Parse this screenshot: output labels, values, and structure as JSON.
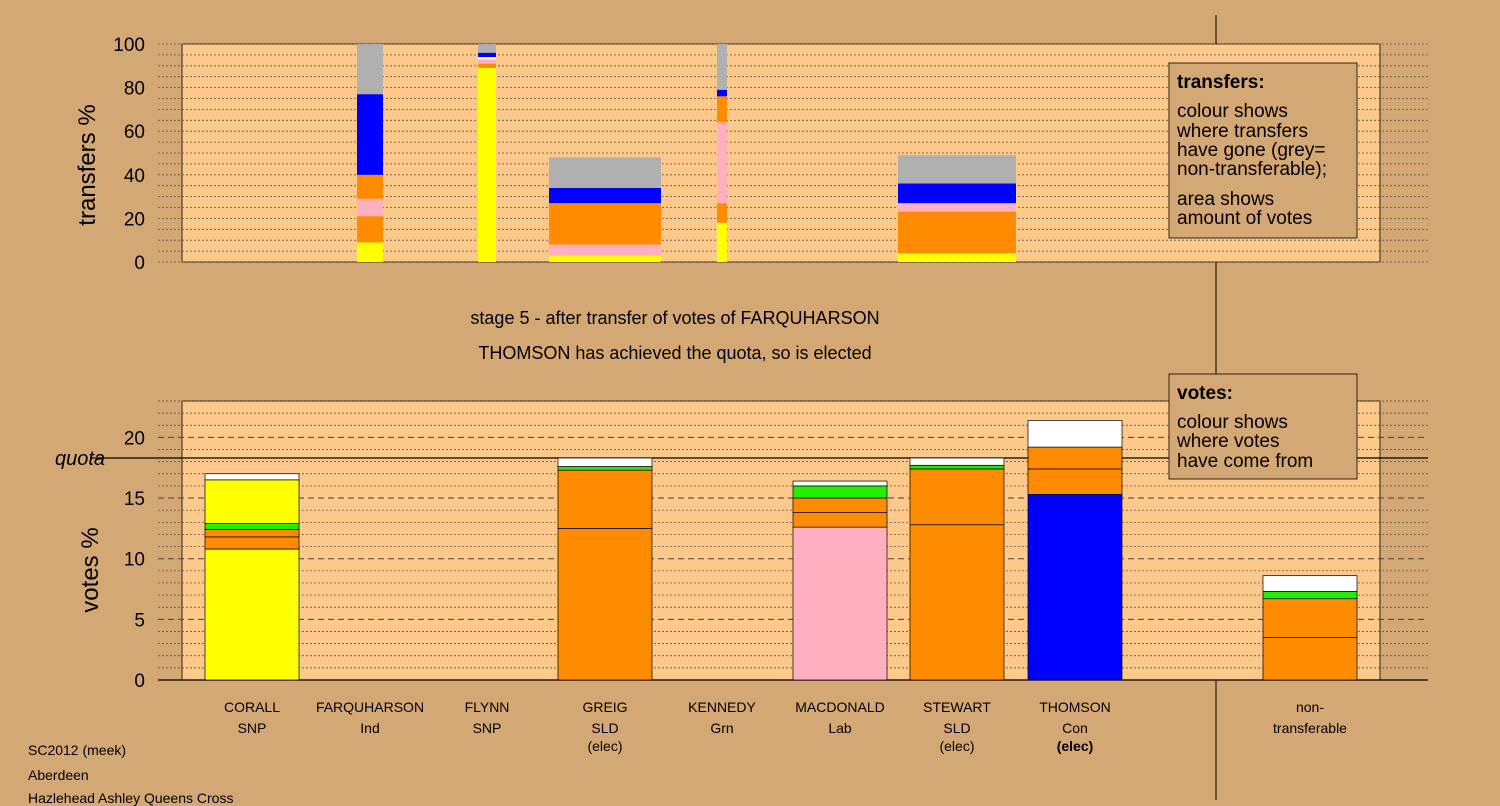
{
  "footer": {
    "line1": "SC2012 (meek)",
    "line2": "Aberdeen",
    "line3": "Hazlehead Ashley Queens Cross"
  },
  "colors": {
    "background": "#d4a874",
    "plot_area": "#fdc98a",
    "yellow": "#ffff00",
    "orange": "#ff8c00",
    "pink": "#ffb0c0",
    "blue": "#0000ff",
    "green": "#22ee00",
    "grey": "#b0b0b0",
    "white": "#ffffff"
  },
  "chart_data": [
    {
      "type": "bar",
      "subtype": "stacked-variable-width",
      "title": "",
      "ylabel": "transfers %",
      "ylim": [
        0,
        100
      ],
      "yticks": [
        0,
        20,
        40,
        60,
        80,
        100
      ],
      "grid": true,
      "legend": {
        "placement": "right",
        "title": "transfers:",
        "lines": [
          "colour shows",
          "where transfers",
          "have gone (grey=",
          "non-transferable);",
          "area shows",
          "amount of votes"
        ]
      },
      "bars": [
        {
          "name": "FARQUHARSON",
          "segments": [
            {
              "color": "yellow",
              "value": 9
            },
            {
              "color": "orange",
              "value": 12
            },
            {
              "color": "pink",
              "value": 8
            },
            {
              "color": "orange",
              "value": 11
            },
            {
              "color": "blue",
              "value": 37
            },
            {
              "color": "grey",
              "value": 23
            }
          ]
        },
        {
          "name": "FLYNN",
          "segments": [
            {
              "color": "yellow",
              "value": 89
            },
            {
              "color": "orange",
              "value": 2
            },
            {
              "color": "pink",
              "value": 2
            },
            {
              "color": "white",
              "value": 1
            },
            {
              "color": "blue",
              "value": 2
            },
            {
              "color": "grey",
              "value": 4
            }
          ]
        },
        {
          "name": "GREIG",
          "segments": [
            {
              "color": "yellow",
              "value": 3
            },
            {
              "color": "pink",
              "value": 5
            },
            {
              "color": "orange",
              "value": 19
            },
            {
              "color": "blue",
              "value": 7
            },
            {
              "color": "grey",
              "value": 14
            }
          ]
        },
        {
          "name": "KENNEDY",
          "segments": [
            {
              "color": "yellow",
              "value": 18
            },
            {
              "color": "orange",
              "value": 9
            },
            {
              "color": "pink",
              "value": 37
            },
            {
              "color": "orange",
              "value": 12
            },
            {
              "color": "blue",
              "value": 3
            },
            {
              "color": "grey",
              "value": 21
            }
          ]
        },
        {
          "name": "STEWART",
          "segments": [
            {
              "color": "yellow",
              "value": 4
            },
            {
              "color": "orange",
              "value": 19
            },
            {
              "color": "pink",
              "value": 4
            },
            {
              "color": "blue",
              "value": 9
            },
            {
              "color": "grey",
              "value": 13
            }
          ]
        }
      ]
    },
    {
      "type": "bar",
      "subtype": "stacked",
      "title": "stage 5 - after transfer of votes of FARQUHARSON",
      "subtitle": "THOMSON has achieved the quota, so is elected",
      "ylabel": "votes %",
      "ylim": [
        0,
        23
      ],
      "yticks": [
        0,
        5,
        10,
        15,
        20
      ],
      "quota": 18.3,
      "quota_label": "quota",
      "grid": true,
      "legend": {
        "placement": "right",
        "title": "votes:",
        "lines": [
          "colour shows",
          "where votes",
          "have come from"
        ]
      },
      "candidates": [
        {
          "name": "CORALL",
          "party": "SNP",
          "status": "",
          "segments": [
            {
              "color": "yellow",
              "value": 10.8
            },
            {
              "color": "orange",
              "value": 1.0
            },
            {
              "color": "orange",
              "value": 0.6
            },
            {
              "color": "green",
              "value": 0.5
            },
            {
              "color": "yellow",
              "value": 3.6
            },
            {
              "color": "white",
              "value": 0.5
            }
          ]
        },
        {
          "name": "FARQUHARSON",
          "party": "Ind",
          "status": "",
          "segments": []
        },
        {
          "name": "FLYNN",
          "party": "SNP",
          "status": "",
          "segments": []
        },
        {
          "name": "GREIG",
          "party": "SLD",
          "status": "(elec)",
          "segments": [
            {
              "color": "orange",
              "value": 12.5
            },
            {
              "color": "orange",
              "value": 4.8
            },
            {
              "color": "green",
              "value": 0.3
            },
            {
              "color": "white",
              "value": 0.7
            }
          ]
        },
        {
          "name": "KENNEDY",
          "party": "Grn",
          "status": "",
          "segments": []
        },
        {
          "name": "MACDONALD",
          "party": "Lab",
          "status": "",
          "segments": [
            {
              "color": "pink",
              "value": 12.6
            },
            {
              "color": "orange",
              "value": 1.2
            },
            {
              "color": "orange",
              "value": 1.2
            },
            {
              "color": "green",
              "value": 1.0
            },
            {
              "color": "white",
              "value": 0.4
            }
          ]
        },
        {
          "name": "STEWART",
          "party": "SLD",
          "status": "(elec)",
          "segments": [
            {
              "color": "orange",
              "value": 12.8
            },
            {
              "color": "orange",
              "value": 4.6
            },
            {
              "color": "green",
              "value": 0.3
            },
            {
              "color": "white",
              "value": 0.6
            }
          ]
        },
        {
          "name": "THOMSON",
          "party": "Con",
          "status": "(elec)",
          "status_bold": true,
          "segments": [
            {
              "color": "blue",
              "value": 15.3
            },
            {
              "color": "orange",
              "value": 2.1
            },
            {
              "color": "orange",
              "value": 1.8
            },
            {
              "color": "white",
              "value": 2.2
            }
          ]
        },
        {
          "name": "non-",
          "party": "transferable",
          "status": "",
          "segments": [
            {
              "color": "orange",
              "value": 3.5
            },
            {
              "color": "orange",
              "value": 3.2
            },
            {
              "color": "green",
              "value": 0.6
            },
            {
              "color": "white",
              "value": 1.3
            }
          ]
        }
      ]
    }
  ]
}
